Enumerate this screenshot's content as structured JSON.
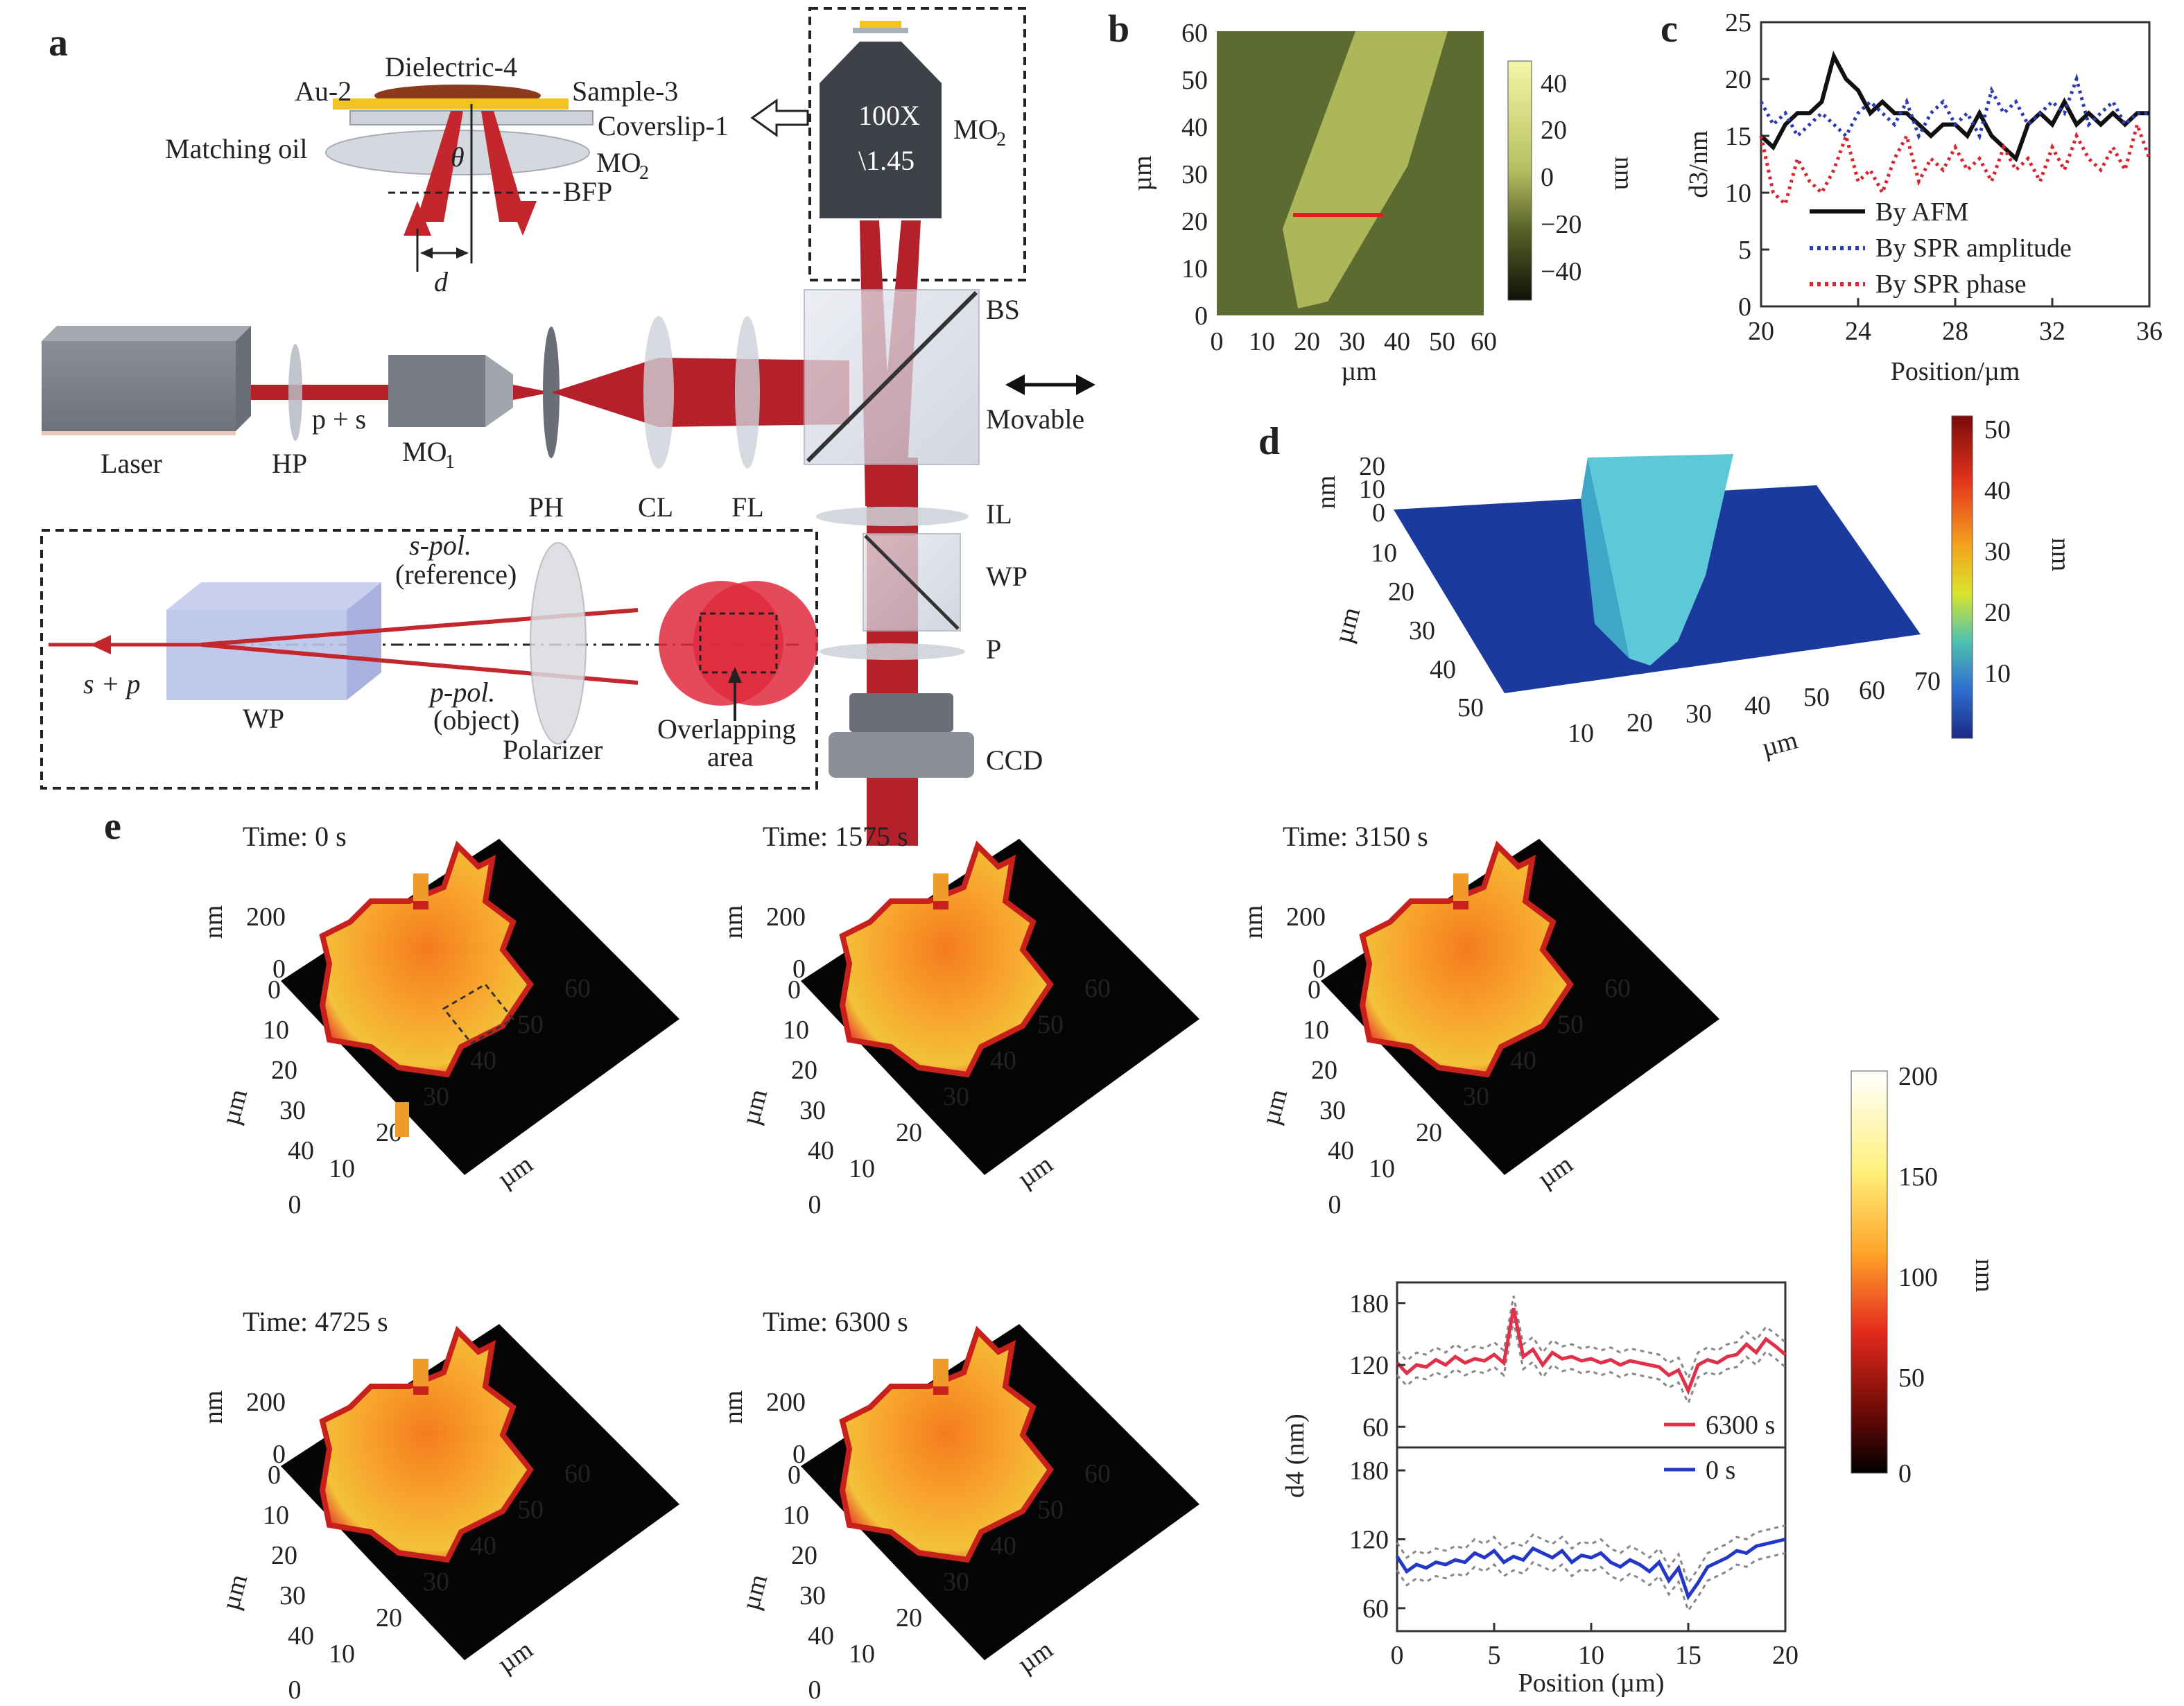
{
  "panels": {
    "a": {
      "label": "a",
      "top": [
        "Dielectric-4",
        "Au-2",
        "Sample-3",
        "Coverslip-1",
        "Matching oil",
        "θ",
        "MO",
        "BFP",
        "d"
      ],
      "objective": [
        "100X",
        "\\1.45",
        "MO"
      ],
      "beam": [
        "Laser",
        "HP",
        "p + s",
        "MO",
        "PH",
        "CL",
        "FL",
        "BS",
        "Movable",
        "IL",
        "WP",
        "P",
        "CCD"
      ],
      "inset": [
        "s-pol.",
        "(reference)",
        "p-pol.",
        "(object)",
        "s + p",
        "WP",
        "Polarizer",
        "Overlapping",
        "area"
      ]
    },
    "b": {
      "label": "b",
      "yticks": [
        "60",
        "50",
        "40",
        "30",
        "20",
        "10",
        "0"
      ],
      "xticks": [
        "0",
        "10",
        "20",
        "30",
        "40",
        "50",
        "60"
      ],
      "axis_label": "µm",
      "cbar_ticks": [
        "40",
        "20",
        "0",
        "−20",
        "−40"
      ],
      "cbar_unit": "nm"
    },
    "c": {
      "label": "c",
      "legend": [
        "By AFM",
        "By SPR amplitude",
        "By SPR phase"
      ]
    },
    "d": {
      "label": "d",
      "zlabel": "nm",
      "zticks": [
        "20",
        "10",
        "0"
      ],
      "yticks": [
        "10",
        "20",
        "30",
        "40",
        "50"
      ],
      "xticks": [
        "10",
        "20",
        "30",
        "40",
        "50",
        "60",
        "70"
      ],
      "axis_label": "µm",
      "cbar_ticks": [
        "50",
        "40",
        "30",
        "20",
        "10"
      ],
      "cbar_unit": "nm"
    },
    "e": {
      "label": "e",
      "times": [
        "Time: 0 s",
        "Time: 1575 s",
        "Time: 3150 s",
        "Time: 4725 s",
        "Time: 6300 s"
      ],
      "zlabel": "nm",
      "zticks": [
        "200",
        "0"
      ],
      "yticks": [
        "0",
        "10",
        "20",
        "30",
        "40"
      ],
      "xticks": [
        "0",
        "10",
        "20",
        "30",
        "40",
        "50",
        "60"
      ],
      "axis_label": "µm",
      "cbar_ticks": [
        "200",
        "150",
        "100",
        "50",
        "0"
      ],
      "cbar_unit": "nm",
      "legend": [
        "6300 s",
        "0 s"
      ]
    }
  },
  "chart_data": [
    {
      "type": "line",
      "title": "",
      "xlabel": "Position/µm",
      "ylabel": "d3/nm",
      "xlim": [
        20,
        36
      ],
      "ylim": [
        0,
        25
      ],
      "xticks": [
        20,
        24,
        28,
        32,
        36
      ],
      "yticks": [
        0,
        5,
        10,
        15,
        20,
        25
      ],
      "legend_position": "bottom-left",
      "x": [
        20,
        20.5,
        21,
        21.5,
        22,
        22.5,
        23,
        23.5,
        24,
        24.5,
        25,
        25.5,
        26,
        26.5,
        27,
        27.5,
        28,
        28.5,
        29,
        29.5,
        30,
        30.5,
        31,
        31.5,
        32,
        32.5,
        33,
        33.5,
        34,
        34.5,
        35,
        35.5,
        36
      ],
      "series": [
        {
          "name": "By AFM",
          "color": "#111111",
          "style": "solid",
          "values": [
            15,
            14,
            16,
            17,
            17,
            18,
            22,
            20,
            19,
            17,
            18,
            17,
            17,
            16,
            15,
            16,
            16,
            15,
            17,
            15,
            14,
            13,
            16,
            17,
            16,
            18,
            16,
            17,
            16,
            17,
            16,
            17,
            17
          ]
        },
        {
          "name": "By SPR amplitude",
          "color": "#2a3bb0",
          "style": "dotted",
          "values": [
            18,
            16,
            17,
            15,
            16,
            17,
            16,
            15,
            17,
            18,
            17,
            16,
            18,
            15,
            17,
            18,
            16,
            17,
            15,
            19,
            17,
            18,
            16,
            17,
            18,
            17,
            20,
            16,
            17,
            18,
            16,
            17,
            17
          ]
        },
        {
          "name": "By SPR phase",
          "color": "#d8252f",
          "style": "dotted",
          "values": [
            15,
            10,
            9,
            13,
            11,
            10,
            12,
            15,
            11,
            12,
            10,
            13,
            15,
            11,
            13,
            12,
            14,
            12,
            13,
            11,
            14,
            12,
            13,
            11,
            14,
            12,
            15,
            13,
            12,
            14,
            12,
            16,
            13
          ]
        }
      ]
    },
    {
      "type": "line",
      "title": "",
      "xlabel": "Position (µm)",
      "ylabel": "d4 (nm)",
      "xlim": [
        0,
        20
      ],
      "ylim_top": [
        40,
        200
      ],
      "ylim_bottom": [
        40,
        200
      ],
      "xticks": [
        0,
        5,
        10,
        15,
        20
      ],
      "yticks": [
        60,
        120,
        180
      ],
      "x": [
        0,
        0.5,
        1,
        1.5,
        2,
        2.5,
        3,
        3.5,
        4,
        4.5,
        5,
        5.5,
        6,
        6.5,
        7,
        7.5,
        8,
        8.5,
        9,
        9.5,
        10,
        10.5,
        11,
        11.5,
        12,
        12.5,
        13,
        13.5,
        14,
        14.5,
        15,
        15.5,
        16,
        16.5,
        17,
        17.5,
        18,
        18.5,
        19,
        19.5,
        20
      ],
      "series": [
        {
          "name": "6300 s",
          "color": "#e0304a",
          "panel": "top",
          "values": [
            122,
            112,
            120,
            118,
            125,
            120,
            128,
            122,
            126,
            124,
            130,
            122,
            175,
            128,
            135,
            120,
            132,
            126,
            128,
            124,
            126,
            122,
            125,
            120,
            124,
            122,
            120,
            118,
            110,
            115,
            95,
            120,
            125,
            122,
            128,
            130,
            140,
            132,
            145,
            138,
            130
          ]
        },
        {
          "name": "0 s",
          "color": "#2438c8",
          "panel": "bottom",
          "values": [
            105,
            92,
            98,
            95,
            100,
            98,
            102,
            100,
            108,
            104,
            110,
            100,
            105,
            102,
            112,
            108,
            104,
            110,
            100,
            106,
            104,
            108,
            100,
            96,
            102,
            98,
            92,
            100,
            84,
            95,
            70,
            82,
            96,
            100,
            104,
            110,
            108,
            114,
            116,
            118,
            120
          ]
        }
      ]
    }
  ]
}
